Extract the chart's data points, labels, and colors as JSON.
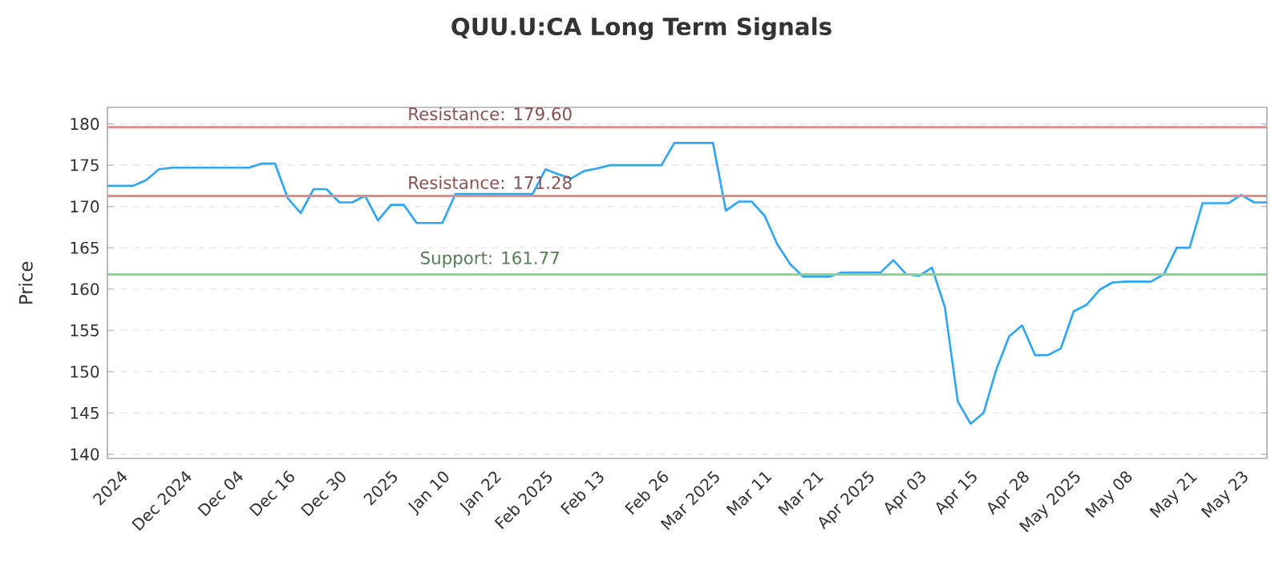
{
  "chart_data": {
    "type": "line",
    "title": "QUU.U:CA Long Term Signals",
    "ylabel": "Price",
    "categories": [
      null,
      "2024",
      null,
      null,
      null,
      null,
      "Dec 2024",
      null,
      null,
      null,
      "Dec 04",
      null,
      null,
      null,
      "Dec 16",
      null,
      null,
      null,
      "Dec 30",
      null,
      null,
      null,
      "2025",
      null,
      null,
      null,
      "Jan 10",
      null,
      null,
      null,
      "Jan 22",
      null,
      null,
      null,
      "Feb 2025",
      null,
      null,
      null,
      "Feb 13",
      null,
      null,
      null,
      null,
      "Feb 26",
      null,
      null,
      null,
      "Mar 2025",
      null,
      null,
      null,
      "Mar 11",
      null,
      null,
      null,
      "Mar 21",
      null,
      null,
      null,
      "Apr 2025",
      null,
      null,
      null,
      "Apr 03",
      null,
      null,
      null,
      "Apr 15",
      null,
      null,
      null,
      "Apr 28",
      null,
      null,
      null,
      "May 2025",
      null,
      null,
      null,
      "May 08",
      null,
      null,
      null,
      null,
      "May 21",
      null,
      null,
      null,
      "May 23",
      null,
      null
    ],
    "series": [
      {
        "color": "#2ea6f5",
        "values": [
          172.5,
          172.5,
          172.5,
          173.2,
          174.5,
          174.7,
          174.7,
          174.7,
          174.7,
          174.7,
          174.7,
          174.7,
          175.2,
          175.2,
          171,
          169.2,
          172.1,
          172.1,
          170.5,
          170.5,
          171.3,
          168.3,
          170.2,
          170.2,
          168,
          168,
          168,
          171.5,
          171.5,
          171.5,
          171.5,
          171.5,
          171.5,
          171.5,
          174.5,
          173.9,
          173.4,
          174.3,
          174.6,
          175,
          175,
          175,
          175,
          175,
          177.7,
          177.7,
          177.7,
          177.7,
          169.5,
          170.6,
          170.6,
          168.9,
          165.4,
          163,
          161.5,
          161.5,
          161.5,
          162,
          162,
          162,
          162,
          163.5,
          161.8,
          161.6,
          162.6,
          157.8,
          146.4,
          143.7,
          145,
          150.3,
          154.3,
          155.6,
          152,
          152,
          152.8,
          157.3,
          158.1,
          159.9,
          160.8,
          160.9,
          160.9,
          160.9,
          161.8,
          165,
          165,
          170.4,
          170.4,
          170.4,
          171.4,
          170.5,
          170.5
        ]
      }
    ],
    "ylim": [
      139.5,
      182
    ],
    "yticks": [
      140,
      145,
      150,
      155,
      160,
      165,
      170,
      175,
      180
    ],
    "ref_lines": [
      {
        "axis": "y",
        "value": 179.6,
        "label": "Resistance: 179.60",
        "color": "#e58a8a"
      },
      {
        "axis": "y",
        "value": 171.28,
        "label": "Resistance: 171.28",
        "color": "#e58a8a"
      },
      {
        "axis": "y",
        "value": 161.77,
        "label": "Support: 161.77",
        "color": "#8fd18f"
      }
    ],
    "grid": "y",
    "marker": "none",
    "line_style": "solid"
  }
}
